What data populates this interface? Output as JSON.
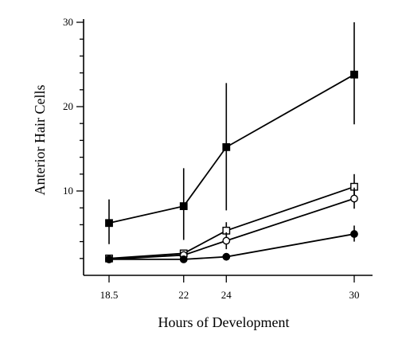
{
  "chart_data": {
    "type": "line",
    "title": "",
    "xlabel": "Hours of Development",
    "ylabel": "Anterior Hair Cells",
    "xlim": [
      18.5,
      30
    ],
    "ylim": [
      0,
      30
    ],
    "x_ticks": [
      18.5,
      22,
      24,
      30
    ],
    "x_tick_labels": [
      "18.5",
      "22",
      "24",
      "30"
    ],
    "y_ticks": [
      10,
      20,
      30
    ],
    "y_tick_labels": [
      "10",
      "20",
      "30"
    ],
    "grid": false,
    "legend": "none",
    "series": [
      {
        "marker": "filled-square",
        "x": [
          18.5,
          22,
          24,
          30
        ],
        "y": [
          6.2,
          8.2,
          15.2,
          23.8
        ],
        "err_low": [
          3.7,
          4.2,
          7.7,
          17.9
        ],
        "err_high": [
          9.0,
          12.7,
          22.8,
          30.0
        ]
      },
      {
        "marker": "open-square",
        "x": [
          18.5,
          22,
          24,
          30
        ],
        "y": [
          2.0,
          2.6,
          5.3,
          10.5
        ],
        "err_low": [
          2.0,
          2.6,
          4.4,
          9.0
        ],
        "err_high": [
          2.0,
          2.6,
          6.3,
          12.0
        ]
      },
      {
        "marker": "open-circle",
        "x": [
          18.5,
          22,
          24,
          30
        ],
        "y": [
          1.9,
          2.4,
          4.1,
          9.1
        ],
        "err_low": [
          1.9,
          2.4,
          3.1,
          7.9
        ],
        "err_high": [
          1.9,
          2.4,
          5.1,
          10.4
        ]
      },
      {
        "marker": "filled-circle",
        "x": [
          18.5,
          22,
          24,
          30
        ],
        "y": [
          1.9,
          1.9,
          2.2,
          4.9
        ],
        "err_low": [
          1.9,
          1.9,
          1.8,
          4.0
        ],
        "err_high": [
          1.9,
          1.9,
          2.6,
          5.9
        ]
      }
    ]
  }
}
